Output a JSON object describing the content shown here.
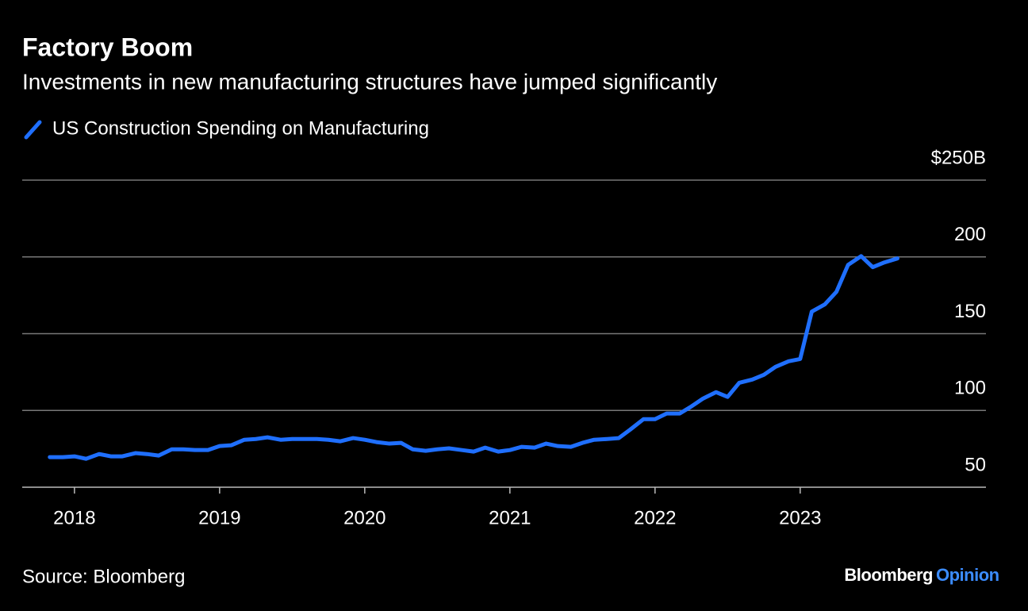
{
  "chart_data": {
    "type": "line",
    "title": "Factory Boom",
    "subtitle": "Investments in new manufacturing structures have jumped significantly",
    "source": "Source: Bloomberg",
    "brand": "Bloomberg",
    "brand_section": "Opinion",
    "x": [
      2017.83,
      2017.92,
      2018.0,
      2018.08,
      2018.17,
      2018.25,
      2018.33,
      2018.42,
      2018.5,
      2018.58,
      2018.67,
      2018.75,
      2018.83,
      2018.92,
      2019.0,
      2019.08,
      2019.17,
      2019.25,
      2019.33,
      2019.42,
      2019.5,
      2019.58,
      2019.67,
      2019.75,
      2019.83,
      2019.92,
      2020.0,
      2020.08,
      2020.17,
      2020.25,
      2020.33,
      2020.42,
      2020.5,
      2020.58,
      2020.67,
      2020.75,
      2020.83,
      2020.92,
      2021.0,
      2021.08,
      2021.17,
      2021.25,
      2021.33,
      2021.42,
      2021.5,
      2021.58,
      2021.67,
      2021.75,
      2021.83,
      2021.92,
      2022.0,
      2022.08,
      2022.17,
      2022.25,
      2022.33,
      2022.42,
      2022.5,
      2022.58,
      2022.67,
      2022.75,
      2022.83,
      2022.92,
      2023.0,
      2023.08,
      2023.17,
      2023.25,
      2023.33,
      2023.42,
      2023.5,
      2023.58,
      2023.67
    ],
    "series": [
      {
        "name": "US Construction Spending on Manufacturing",
        "color": "#1f6fff",
        "values": [
          69.6,
          69.6,
          70.1,
          68.5,
          71.6,
          70.1,
          70.1,
          72.2,
          71.6,
          70.6,
          74.7,
          74.7,
          74.2,
          74.2,
          76.8,
          77.3,
          80.9,
          81.4,
          82.5,
          80.9,
          81.4,
          81.4,
          81.4,
          80.9,
          79.9,
          82.0,
          80.9,
          79.4,
          78.4,
          78.9,
          74.7,
          73.7,
          74.7,
          75.3,
          74.2,
          73.2,
          75.8,
          73.2,
          74.2,
          76.3,
          75.8,
          78.4,
          76.8,
          76.3,
          78.9,
          80.9,
          81.4,
          82.0,
          87.6,
          94.3,
          94.3,
          98.0,
          98.0,
          102.6,
          107.7,
          111.9,
          108.8,
          118.0,
          120.1,
          123.2,
          128.4,
          132.0,
          133.5,
          164.4,
          169.1,
          177.3,
          194.8,
          200.5,
          193.3,
          196.4,
          199.0
        ]
      }
    ],
    "xlim": [
      2017.64,
      2024.28
    ],
    "xticks": [
      2018,
      2019,
      2020,
      2021,
      2022,
      2023
    ],
    "ylim": [
      50,
      250
    ],
    "yticks": [
      50,
      100,
      150,
      200,
      {
        "value": 250,
        "label": "$250B"
      }
    ],
    "grid": true
  }
}
